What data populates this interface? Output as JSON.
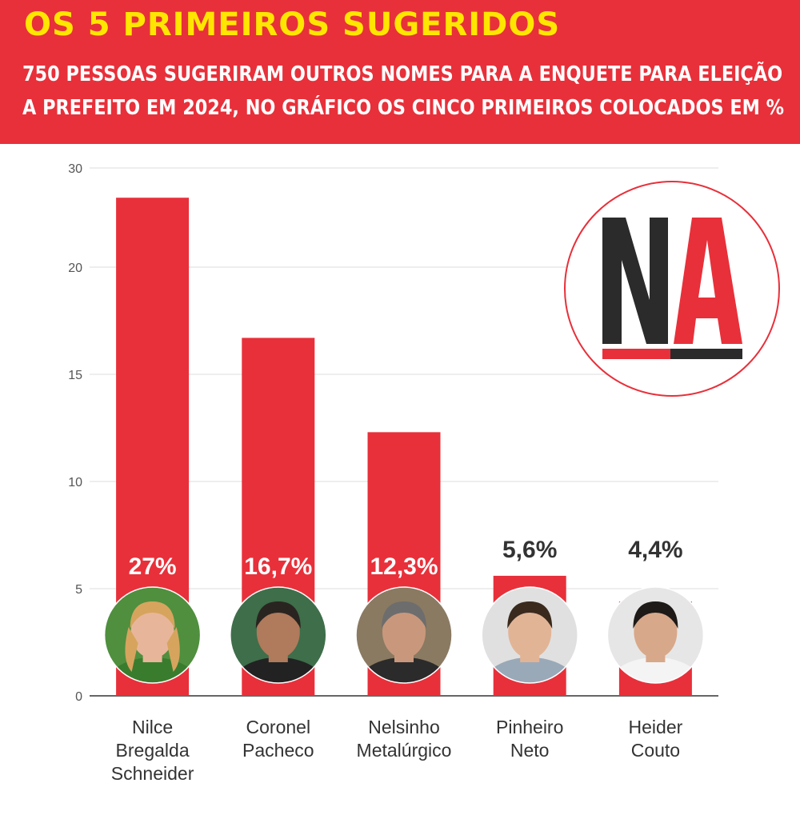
{
  "header": {
    "title": "OS 5 PRIMEIROS SUGERIDOS",
    "subtitle_line1": "750 PESSOAS SUGERIRAM OUTROS NOMES PARA A ENQUETE PARA ELEIÇÃO",
    "subtitle_line2": "A PREFEITO EM 2024, NO GRÁFICO OS CINCO PRIMEIROS COLOCADOS EM %"
  },
  "logo": {
    "text": "NA"
  },
  "colors": {
    "bar": "#e8303a",
    "header": "#e8303a",
    "title": "#ffe600",
    "logo_dark": "#2b2b2b"
  },
  "chart_data": {
    "type": "bar",
    "title": "OS 5 PRIMEIROS SUGERIDOS",
    "categories": [
      [
        "Nilce",
        "Bregalda",
        "Schneider"
      ],
      [
        "Coronel",
        "Pacheco"
      ],
      [
        "Nelsinho",
        "Metalúrgico"
      ],
      [
        "Pinheiro",
        "Neto"
      ],
      [
        "Heider",
        "Couto"
      ]
    ],
    "values": [
      27,
      16.7,
      12.3,
      5.6,
      4.4
    ],
    "data_labels": [
      "27%",
      "16,7%",
      "12,3%",
      "5,6%",
      "4,4%"
    ],
    "y_ticks": [
      "0",
      "5",
      "10",
      "15",
      "20",
      "30"
    ],
    "ylim": [
      0,
      30
    ],
    "grid": true,
    "xlabel": "",
    "ylabel": ""
  }
}
